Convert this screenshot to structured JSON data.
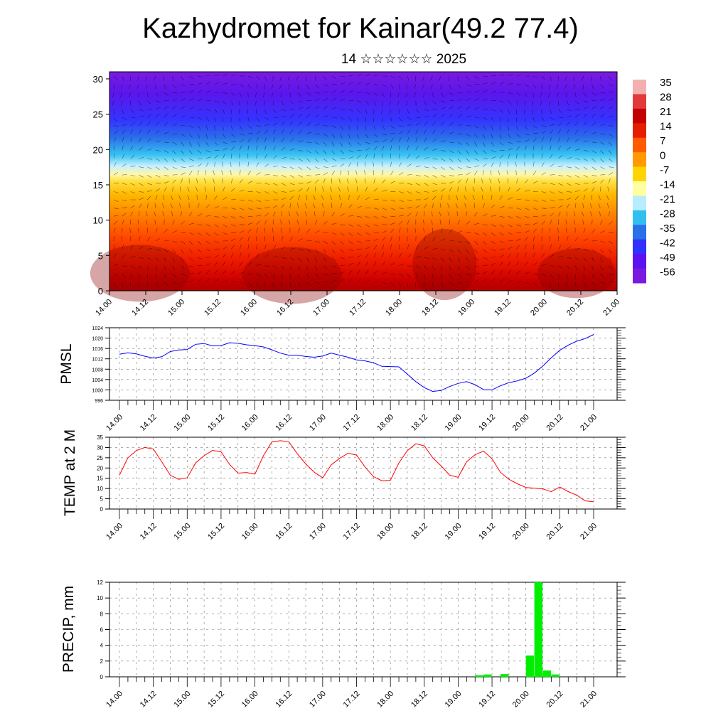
{
  "title": "Kazhydromet for Kainar(49.2 77.4)",
  "subtitle": "14 ☆☆☆☆☆☆ 2025",
  "time_labels": [
    "14.00",
    "14.12",
    "15.00",
    "15.12",
    "16.00",
    "16.12",
    "17.00",
    "17.12",
    "18.00",
    "18.12",
    "19.00",
    "19.12",
    "20.00",
    "20.12",
    "21.00"
  ],
  "colorbar": {
    "labels": [
      "35",
      "28",
      "21",
      "14",
      "7",
      "0",
      "-7",
      "-14",
      "-21",
      "-28",
      "-35",
      "-42",
      "-49",
      "-56"
    ],
    "colors": [
      "#f4b0b0",
      "#e23a3a",
      "#c40000",
      "#e61e00",
      "#ff5a00",
      "#ff9a00",
      "#ffd400",
      "#ffffa0",
      "#b8ecff",
      "#30c0f0",
      "#2a70e8",
      "#3030ff",
      "#5c12ee",
      "#7a1ae0"
    ]
  },
  "chart_data": [
    {
      "type": "heatmap",
      "title": "",
      "x_ticks": [
        "14.00",
        "14.12",
        "15.00",
        "15.12",
        "16.00",
        "16.12",
        "17.00",
        "17.12",
        "18.00",
        "18.12",
        "19.00",
        "19.12",
        "20.00",
        "20.12",
        "21.00"
      ],
      "y_ticks": [
        0,
        5,
        10,
        15,
        20,
        25,
        30
      ],
      "ylim": [
        0,
        31
      ],
      "colorbar_range": [
        -56,
        35
      ]
    },
    {
      "type": "line",
      "ylabel": "PMSL",
      "ylim": [
        996,
        1024
      ],
      "y_ticks": [
        996,
        1000,
        1004,
        1008,
        1012,
        1016,
        1020,
        1024
      ],
      "x_ticks": [
        "14.00",
        "14.12",
        "15.00",
        "15.12",
        "16.00",
        "16.12",
        "17.00",
        "17.12",
        "18.00",
        "18.12",
        "19.00",
        "19.12",
        "20.00",
        "20.12",
        "21.00"
      ],
      "color": "#0000ff",
      "values": [
        1013.8,
        1014.3,
        1013.9,
        1013,
        1012.3,
        1012.8,
        1014.8,
        1015.4,
        1015.6,
        1017.6,
        1017.9,
        1017,
        1017.1,
        1018.2,
        1018,
        1017.4,
        1017.1,
        1016.6,
        1015.5,
        1014.2,
        1013.4,
        1013.4,
        1012.9,
        1012.6,
        1013.1,
        1014.2,
        1013.4,
        1012.6,
        1011.6,
        1011.2,
        1010.5,
        1009.1,
        1009,
        1008.9,
        1006.1,
        1003.2,
        1000.9,
        999.4,
        999.8,
        1001.3,
        1002.5,
        1003.2,
        1002,
        1000.1,
        1000,
        1001.6,
        1002.8,
        1003.5,
        1004.5,
        1006.5,
        1009.2,
        1012.4,
        1015.3,
        1017.3,
        1018.8,
        1019.8,
        1021.4
      ]
    },
    {
      "type": "line",
      "ylabel": "TEMP at 2 M",
      "ylim": [
        0,
        35
      ],
      "y_ticks": [
        0,
        5,
        10,
        15,
        20,
        25,
        30,
        35
      ],
      "x_ticks": [
        "14.00",
        "14.12",
        "15.00",
        "15.12",
        "16.00",
        "16.12",
        "17.00",
        "17.12",
        "18.00",
        "18.12",
        "19.00",
        "19.12",
        "20.00",
        "20.12",
        "21.00"
      ],
      "color": "#ff0000",
      "values": [
        16.5,
        25,
        28.5,
        30,
        29.3,
        23,
        16.5,
        14.5,
        15.2,
        22.5,
        26,
        28.6,
        27.9,
        21.8,
        17.5,
        17.8,
        17,
        26,
        32.7,
        33.3,
        32.8,
        27,
        22,
        18,
        15.2,
        21.5,
        24.7,
        27.2,
        26.3,
        20.5,
        15.8,
        13.8,
        14,
        22.5,
        28.5,
        31.8,
        30.8,
        25,
        21,
        16.5,
        15.5,
        23,
        26.5,
        28.2,
        24.5,
        17.8,
        14.5,
        12.3,
        10.5,
        10.2,
        9.8,
        8.5,
        10.7,
        8.5,
        6.8,
        4,
        3.5
      ]
    },
    {
      "type": "bar",
      "ylabel": "PRECIP, mm",
      "ylim": [
        0,
        12
      ],
      "y_ticks": [
        0,
        2,
        4,
        6,
        8,
        10,
        12
      ],
      "x_ticks": [
        "14.00",
        "14.12",
        "15.00",
        "15.12",
        "16.00",
        "16.12",
        "17.00",
        "17.12",
        "18.00",
        "18.12",
        "19.00",
        "19.12",
        "20.00",
        "20.12",
        "21.00"
      ],
      "color": "#00ee00",
      "values": [
        0,
        0,
        0,
        0,
        0,
        0,
        0,
        0,
        0,
        0,
        0,
        0,
        0,
        0,
        0,
        0,
        0,
        0,
        0,
        0,
        0,
        0,
        0,
        0,
        0,
        0,
        0,
        0,
        0,
        0,
        0,
        0,
        0,
        0,
        0,
        0,
        0,
        0,
        0,
        0,
        0,
        0,
        0.2,
        0.3,
        0,
        0.35,
        0,
        0,
        2.7,
        12,
        0.8,
        0.3,
        0,
        0,
        0,
        0
      ]
    }
  ]
}
